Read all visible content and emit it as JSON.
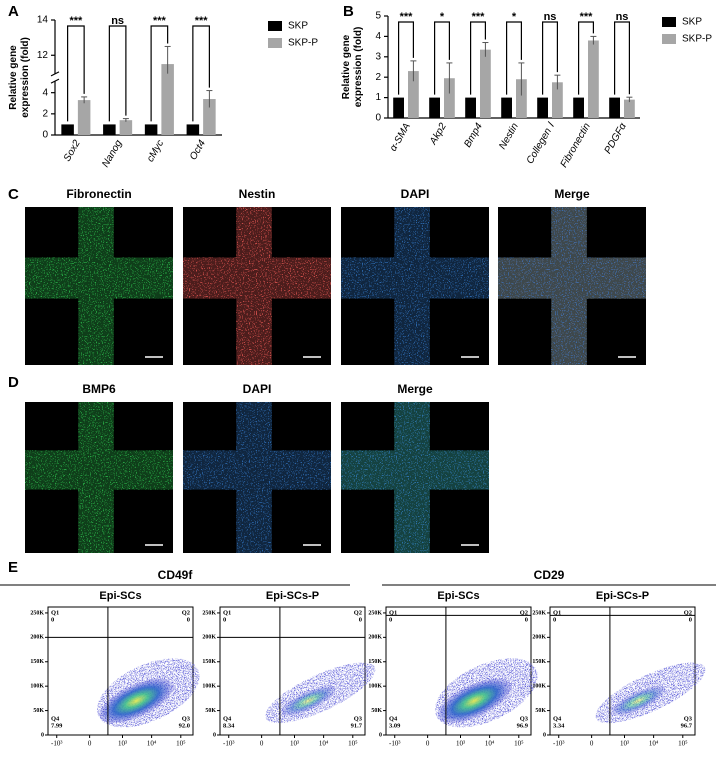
{
  "panel_labels": [
    "A",
    "B",
    "C",
    "D",
    "E"
  ],
  "chart_data": [
    {
      "type": "bar",
      "y_label": [
        "Relative gene",
        "expression (fold)"
      ],
      "categories": [
        "Sox2",
        "Nanog",
        "cMyc",
        "Oct4"
      ],
      "series": [
        {
          "name": "SKP",
          "color": "#000000",
          "values": [
            1,
            1,
            1,
            1
          ]
        },
        {
          "name": "SKP-P",
          "color": "#a6a6a6",
          "values": [
            3.3,
            1.4,
            11.5,
            3.4
          ],
          "errors": [
            0.3,
            0.15,
            1.0,
            0.8
          ]
        }
      ],
      "significance": [
        "***",
        "ns",
        "***",
        "***"
      ],
      "ylim": [
        0,
        14
      ],
      "yticks": [
        0,
        2,
        4,
        12,
        14
      ],
      "ybreak": [
        5,
        11
      ],
      "legend": "right"
    },
    {
      "type": "bar",
      "y_label": [
        "Relative gene",
        "expression (fold)"
      ],
      "categories": [
        "α-SMA",
        "Akp2",
        "Bmp4",
        "Nestin",
        "Collegen Ⅰ",
        "Fibronectin",
        "PDGFα"
      ],
      "series": [
        {
          "name": "SKP",
          "color": "#000000",
          "values": [
            1,
            1,
            1,
            1,
            1,
            1,
            1
          ]
        },
        {
          "name": "SKP-P",
          "color": "#a6a6a6",
          "values": [
            2.3,
            1.95,
            3.35,
            1.9,
            1.75,
            3.8,
            0.9
          ],
          "errors": [
            0.5,
            0.75,
            0.35,
            0.8,
            0.35,
            0.2,
            0.12
          ]
        }
      ],
      "significance": [
        "***",
        "*",
        "***",
        "*",
        "ns",
        "***",
        "ns"
      ],
      "ylim": [
        0,
        5
      ],
      "yticks": [
        0,
        1,
        2,
        3,
        4,
        5
      ],
      "legend": "right"
    }
  ],
  "images": [
    {
      "channels": [
        {
          "label": "Fibronectin",
          "color": "#2bb34a"
        },
        {
          "label": "Nestin",
          "color": "#d9534f"
        },
        {
          "label": "DAPI",
          "color": "#2f6db5"
        },
        {
          "label": "Merge",
          "color": "#000000"
        }
      ],
      "scale_bar": "200 µm"
    },
    {
      "channels": [
        {
          "label": "BMP6",
          "color": "#2bb34a"
        },
        {
          "label": "DAPI",
          "color": "#2f6db5"
        },
        {
          "label": "Merge",
          "color": "#000000"
        }
      ],
      "scale_bar": "200 µm"
    }
  ],
  "flow": {
    "xlim": [
      -2000,
      262144
    ],
    "xticks": [
      {
        "value": -1000,
        "label": "-10³"
      },
      0,
      {
        "value": 1000,
        "label": "10³"
      },
      {
        "value": 10000,
        "label": "10⁴"
      },
      {
        "value": 100000,
        "label": "10⁵"
      }
    ],
    "ylim": [
      0,
      262144
    ],
    "yticks": [
      {
        "value": 0,
        "label": "0"
      },
      {
        "value": 50000,
        "label": "50K"
      },
      {
        "value": 100000,
        "label": "100K"
      },
      {
        "value": 150000,
        "label": "150K"
      },
      {
        "value": 200000,
        "label": "200K"
      },
      {
        "value": 250000,
        "label": "250K"
      }
    ],
    "groups": [
      {
        "marker": "CD49f",
        "gate": {
          "x": 300,
          "y": 200000
        },
        "plots": [
          {
            "title": "Epi-SCs",
            "quadrants": [
              {
                "name": "Q1",
                "value": "0"
              },
              {
                "name": "Q2",
                "value": "0"
              },
              {
                "name": "Q3",
                "value": "92.0"
              },
              {
                "name": "Q4",
                "value": "7.99"
              }
            ]
          },
          {
            "title": "Epi-SCs-P",
            "quadrants": [
              {
                "name": "Q1",
                "value": "0"
              },
              {
                "name": "Q2",
                "value": "0"
              },
              {
                "name": "Q3",
                "value": "91.7"
              },
              {
                "name": "Q4",
                "value": "8.34"
              }
            ]
          }
        ]
      },
      {
        "marker": "CD29",
        "gate": {
          "x": 300,
          "y": 245000
        },
        "plots": [
          {
            "title": "Epi-SCs",
            "quadrants": [
              {
                "name": "Q1",
                "value": "0"
              },
              {
                "name": "Q2",
                "value": "0"
              },
              {
                "name": "Q3",
                "value": "96.9"
              },
              {
                "name": "Q4",
                "value": "3.09"
              }
            ]
          },
          {
            "title": "Epi-SCs-P",
            "quadrants": [
              {
                "name": "Q1",
                "value": "0"
              },
              {
                "name": "Q2",
                "value": "0"
              },
              {
                "name": "Q3",
                "value": "96.7"
              },
              {
                "name": "Q4",
                "value": "3.34"
              }
            ]
          }
        ]
      }
    ]
  }
}
